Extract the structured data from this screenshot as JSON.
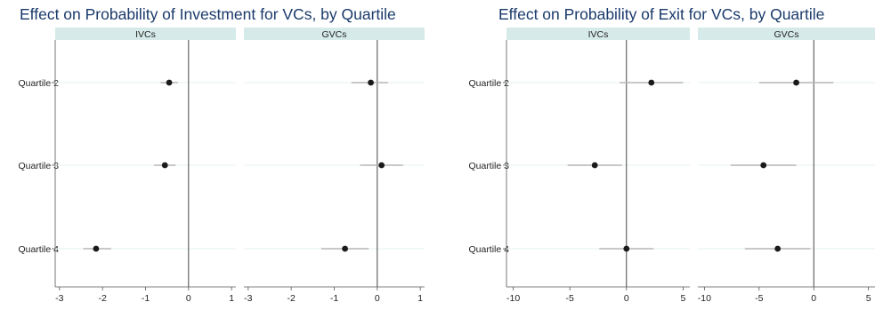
{
  "chart_data": [
    {
      "type": "scatter",
      "subtype": "coefficient-plot-with-confidence-intervals",
      "title": "Effect on Probability of Investment for VCs, by Quartile",
      "categories": [
        "Quartile 2",
        "Quartile 3",
        "Quartile 4"
      ],
      "xlim": [
        -3.1,
        1.1
      ],
      "xticks": [
        -3,
        -2,
        -1,
        0,
        1
      ],
      "xtick_labels": [
        "-3",
        "-2",
        "-1",
        "0",
        "1"
      ],
      "reference_line_x": 0,
      "panels": [
        {
          "name": "IVCs",
          "points": [
            {
              "category": "Quartile 2",
              "estimate": -0.45,
              "ci_low": -0.65,
              "ci_high": -0.25
            },
            {
              "category": "Quartile 3",
              "estimate": -0.55,
              "ci_low": -0.8,
              "ci_high": -0.3
            },
            {
              "category": "Quartile 4",
              "estimate": -2.15,
              "ci_low": -2.45,
              "ci_high": -1.8
            }
          ]
        },
        {
          "name": "GVCs",
          "points": [
            {
              "category": "Quartile 2",
              "estimate": -0.15,
              "ci_low": -0.6,
              "ci_high": 0.25
            },
            {
              "category": "Quartile 3",
              "estimate": 0.1,
              "ci_low": -0.4,
              "ci_high": 0.6
            },
            {
              "category": "Quartile 4",
              "estimate": -0.75,
              "ci_low": -1.3,
              "ci_high": -0.2
            }
          ]
        }
      ]
    },
    {
      "type": "scatter",
      "subtype": "coefficient-plot-with-confidence-intervals",
      "title": "Effect on Probability of Exit for VCs, by Quartile",
      "categories": [
        "Quartile 2",
        "Quartile 3",
        "Quartile 4"
      ],
      "xlim": [
        -10.6,
        5.6
      ],
      "xticks": [
        -10,
        -5,
        0,
        5
      ],
      "xtick_labels": [
        "-10",
        "-5",
        "0",
        "5"
      ],
      "reference_line_x": 0,
      "panels": [
        {
          "name": "IVCs",
          "points": [
            {
              "category": "Quartile 2",
              "estimate": 2.2,
              "ci_low": -0.6,
              "ci_high": 5.0
            },
            {
              "category": "Quartile 3",
              "estimate": -2.8,
              "ci_low": -5.2,
              "ci_high": -0.4
            },
            {
              "category": "Quartile 4",
              "estimate": 0.0,
              "ci_low": -2.4,
              "ci_high": 2.4
            }
          ]
        },
        {
          "name": "GVCs",
          "points": [
            {
              "category": "Quartile 2",
              "estimate": -1.6,
              "ci_low": -5.0,
              "ci_high": 1.8
            },
            {
              "category": "Quartile 3",
              "estimate": -4.6,
              "ci_low": -7.6,
              "ci_high": -1.6
            },
            {
              "category": "Quartile 4",
              "estimate": -3.3,
              "ci_low": -6.3,
              "ci_high": -0.3
            }
          ]
        }
      ]
    }
  ],
  "colors": {
    "title": "#1a3a6b",
    "strip_fill": "#d6ebe9",
    "point": "#1a1a1a",
    "ci": "#b5b5b5",
    "ref_line": "#333333",
    "gridline": "#e6f2f1"
  }
}
